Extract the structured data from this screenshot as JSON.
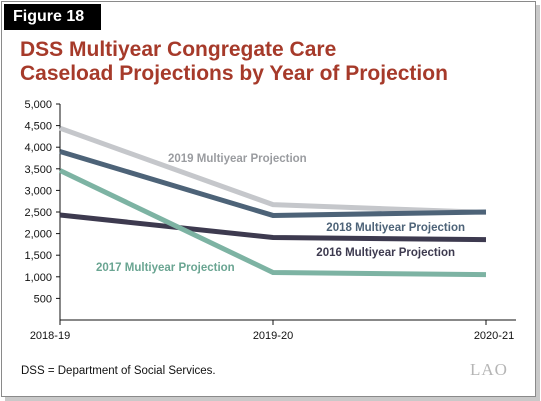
{
  "figure_label": "Figure 18",
  "title_line1": "DSS Multiyear Congregate Care",
  "title_line2": "Caseload Projections by Year of Projection",
  "footnote": "DSS = Department of Social Services.",
  "logo": "LAO",
  "chart_data": {
    "type": "line",
    "categories": [
      "2018-19",
      "2019-20",
      "2020-21"
    ],
    "ylim": [
      0,
      5000
    ],
    "y_ticks": [
      "5,000",
      "4,500",
      "4,000",
      "3,500",
      "3,000",
      "2,500",
      "2,000",
      "1,500",
      "1,000",
      "500"
    ],
    "y_tick_values": [
      5000,
      4500,
      4000,
      3500,
      3000,
      2500,
      2000,
      1500,
      1000,
      500
    ],
    "grid": false,
    "series": [
      {
        "name": "2019 Multiyear Projection",
        "values": [
          4440,
          2670,
          2490
        ],
        "color": "#c5c7cb"
      },
      {
        "name": "2018 Multiyear Projection",
        "values": [
          3900,
          2420,
          2500
        ],
        "color": "#4d6378"
      },
      {
        "name": "2016 Multiyear Projection",
        "values": [
          2430,
          1910,
          1860
        ],
        "color": "#3d3a4f"
      },
      {
        "name": "2017 Multiyear Projection",
        "values": [
          3460,
          1100,
          1050
        ],
        "color": "#7db3a3"
      }
    ]
  }
}
